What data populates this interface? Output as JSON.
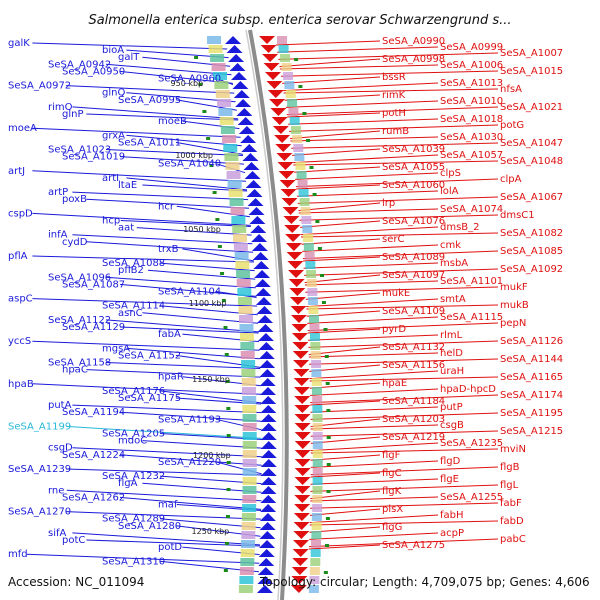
{
  "title": "Salmonella enterica subsp. enterica serovar Schwarzengrund s...",
  "accession": "Accession: NC_011094",
  "summary": "Topology: circular; Length: 4,709,075 bp; Genes: 4,606",
  "colors": {
    "minus_strand": "#1a1adb",
    "plus_strand": "#e01010",
    "highlight": "#29b8d6",
    "backbone": "#8c8c8c",
    "marker": "#1a8a1a"
  },
  "scale_labels": [
    "950 kbp",
    "1000 kbp",
    "1050 kbp",
    "1100 kbp",
    "1150 kbp",
    "1200 kbp",
    "1250 kbp"
  ],
  "left_labels": [
    "galK",
    "bioA",
    "galT",
    "SeSA_A0942",
    "SeSA_A0950",
    "SeSA_A0960",
    "SeSA_A0972",
    "glnQ",
    "SeSA_A0995",
    "rimO",
    "glnP",
    "moeB",
    "moeA",
    "grxA",
    "SeSA_A1011",
    "SeSA_A1023",
    "SeSA_A1019",
    "SeSA_A1040",
    "artJ",
    "artI",
    "ltaE",
    "artP",
    "poxB",
    "hcr",
    "cspD",
    "hcp",
    "aat",
    "infA",
    "cydD",
    "trxB",
    "pflA",
    "SeSA_A1088",
    "pflB2",
    "SeSA_A1096",
    "SeSA_A1087",
    "SeSA_A1104",
    "aspC",
    "SeSA_A1114",
    "asnC",
    "SeSA_A1122",
    "SeSA_A1129",
    "fabA",
    "yccS",
    "mgsA",
    "SeSA_A1152",
    "SeSA_A1158",
    "hpaC",
    "hpaR",
    "hpaB",
    "SeSA_A1176",
    "SeSA_A1175",
    "putA",
    "SeSA_A1194",
    "SeSA_A1193",
    "SeSA_A1199",
    "SeSA_A1205",
    "mdoC",
    "csgD",
    "SeSA_A1224",
    "SeSA_A1220",
    "SeSA_A1239",
    "SeSA_A1232",
    "flgA",
    "rne",
    "SeSA_A1262",
    "maf",
    "SeSA_A1270",
    "SeSA_A1289",
    "SeSA_A1280",
    "sifA",
    "potC",
    "potD",
    "mfd",
    "SeSA_A1310"
  ],
  "right_labels": [
    "SeSA_A0990",
    "SeSA_A0999",
    "SeSA_A1007",
    "SeSA_A0998",
    "SeSA_A1006",
    "SeSA_A1015",
    "bssR",
    "SeSA_A1013",
    "nfsA",
    "rimK",
    "SeSA_A1010",
    "SeSA_A1021",
    "potH",
    "SeSA_A1018",
    "potG",
    "rumB",
    "SeSA_A1030",
    "SeSA_A1047",
    "SeSA_A1039",
    "SeSA_A1057",
    "SeSA_A1048",
    "SeSA_A1055",
    "clpS",
    "clpA",
    "SeSA_A1060",
    "lolA",
    "SeSA_A1067",
    "lrp",
    "SeSA_A1074",
    "dmsC1",
    "SeSA_A1076",
    "dmsB_2",
    "SeSA_A1082",
    "serC",
    "cmk",
    "SeSA_A1085",
    "SeSA_A1089",
    "msbA",
    "SeSA_A1092",
    "SeSA_A1097",
    "SeSA_A1101",
    "mukF",
    "mukE",
    "smtA",
    "mukB",
    "SeSA_A1109",
    "SeSA_A1115",
    "pepN",
    "pyrD",
    "rlmL",
    "SeSA_A1126",
    "SeSA_A1132",
    "helD",
    "SeSA_A1144",
    "SeSA_A1156",
    "uraH",
    "SeSA_A1165",
    "hpaE",
    "hpaD-hpcD",
    "SeSA_A1174",
    "SeSA_A1184",
    "putP",
    "SeSA_A1195",
    "SeSA_A1203",
    "csgB",
    "SeSA_A1215",
    "SeSA_A1219",
    "SeSA_A1235",
    "mviN",
    "flgF",
    "flgD",
    "flgB",
    "flgC",
    "flgE",
    "flgL",
    "flgK",
    "SeSA_A1255",
    "fabF",
    "plsX",
    "fabH",
    "fabD",
    "flgG",
    "acpP",
    "pabC",
    "SeSA_A1275"
  ]
}
